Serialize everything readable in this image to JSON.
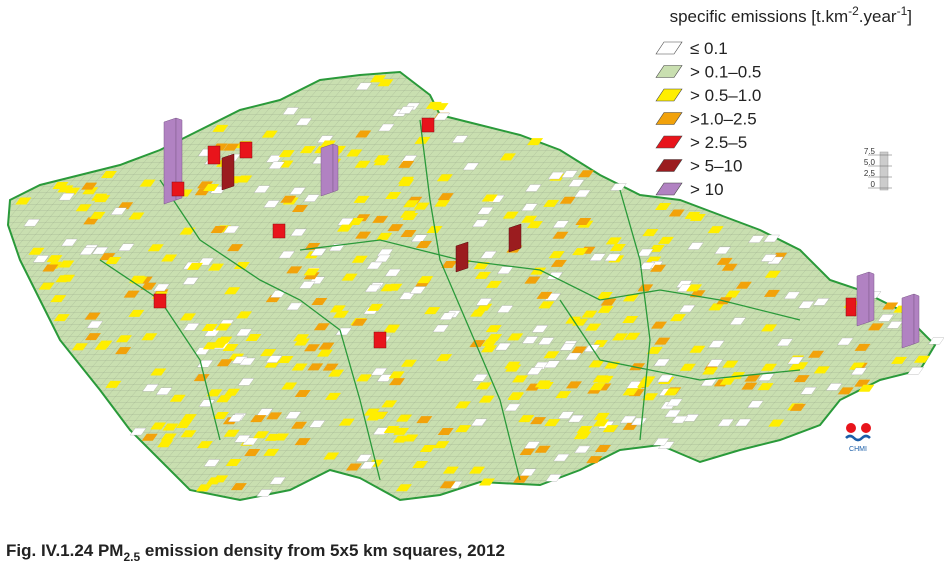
{
  "legend": {
    "title": [
      "specific emissions [t.km",
      "-2",
      ".year",
      "-1",
      "]"
    ],
    "items": [
      {
        "label": "≤ 0.1",
        "color": "#ffffff"
      },
      {
        "label": "> 0.1–0.5",
        "color": "#c9dfb0"
      },
      {
        "label": "> 0.5–1.0",
        "color": "#ffee00"
      },
      {
        "label": ">1.0–2.5",
        "color": "#f2a20a"
      },
      {
        "label": "> 2.5–5",
        "color": "#e8141b"
      },
      {
        "label": "> 5–10",
        "color": "#9b1c1f"
      },
      {
        "label": "> 10",
        "color": "#b182c2"
      }
    ]
  },
  "scale": {
    "ticks": [
      "7.5",
      "5.0",
      "2.5",
      "0"
    ]
  },
  "logo": {
    "text": "CHMI"
  },
  "caption": {
    "parts": [
      "Fig. IV.1.24  PM",
      "2.5",
      " emission density from 5x5 km squares, 2012"
    ]
  }
}
